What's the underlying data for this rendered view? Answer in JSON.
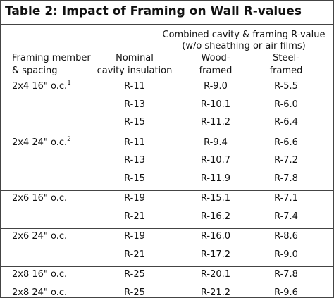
{
  "table": {
    "title": "Table 2: Impact of Framing on Wall R-values",
    "group_label": [
      "Combined cavity & framing R-value",
      "(w/o sheathing or air films)"
    ],
    "columns": [
      [
        "Framing member",
        "& spacing"
      ],
      [
        "Nominal",
        "cavity insulation"
      ],
      [
        "Wood-",
        "framed"
      ],
      [
        "Steel-",
        "framed"
      ]
    ],
    "groups": [
      {
        "rows": [
          {
            "framing": "2x4 16\" o.c.",
            "note": "1",
            "values": [
              "R-11",
              "R-9.0",
              "R-5.5"
            ]
          },
          {
            "values": [
              "R-13",
              "R-10.1",
              "R-6.0"
            ]
          },
          {
            "values": [
              "R-15",
              "R-11.2",
              "R-6.4"
            ]
          }
        ]
      },
      {
        "rows": [
          {
            "framing": "2x4 24\" o.c.",
            "note": "2",
            "values": [
              "R-11",
              "R-9.4",
              "R-6.6"
            ]
          },
          {
            "values": [
              "R-13",
              "R-10.7",
              "R-7.2"
            ]
          },
          {
            "values": [
              "R-15",
              "R-11.9",
              "R-7.8"
            ]
          }
        ]
      },
      {
        "rows": [
          {
            "framing": "2x6 16\" o.c.",
            "values": [
              "R-19",
              "R-15.1",
              "R-7.1"
            ]
          },
          {
            "values": [
              "R-21",
              "R-16.2",
              "R-7.4"
            ]
          }
        ]
      },
      {
        "rows": [
          {
            "framing": "2x6 24\" o.c.",
            "values": [
              "R-19",
              "R-16.0",
              "R-8.6"
            ]
          },
          {
            "values": [
              "R-21",
              "R-17.2",
              "R-9.0"
            ]
          }
        ]
      },
      {
        "rows": [
          {
            "framing": "2x8 16\" o.c.",
            "values": [
              "R-25",
              "R-20.1",
              "R-7.8"
            ]
          },
          {
            "framing": "2x8 24\" o.c.",
            "values": [
              "R-25",
              "R-21.2",
              "R-9.6"
            ]
          }
        ]
      }
    ]
  }
}
